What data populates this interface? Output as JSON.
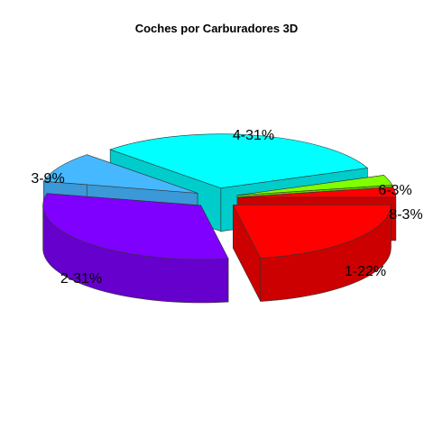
{
  "chart_data": {
    "type": "pie",
    "variant": "3d-exploded",
    "title": "Coches por Carburadores 3D",
    "slices": [
      {
        "label": "1-22%",
        "category": "1",
        "percent": 22,
        "color": "#ff0000",
        "side_color": "#cc0000"
      },
      {
        "label": "2-31%",
        "category": "2",
        "percent": 31,
        "color": "#7f00ff",
        "side_color": "#6600cc"
      },
      {
        "label": "3-9%",
        "category": "3",
        "percent": 9,
        "color": "#46b8ff",
        "side_color": "#3a99d6"
      },
      {
        "label": "4-31%",
        "category": "4",
        "percent": 31,
        "color": "#00ffff",
        "side_color": "#00cccc"
      },
      {
        "label": "6-3%",
        "category": "6",
        "percent": 3,
        "color": "#80ff00",
        "side_color": "#66cc00"
      },
      {
        "label": "8-3%",
        "category": "8",
        "percent": 3,
        "color": "#ff0000",
        "side_color": "#cc0000"
      }
    ],
    "legend": "none"
  }
}
